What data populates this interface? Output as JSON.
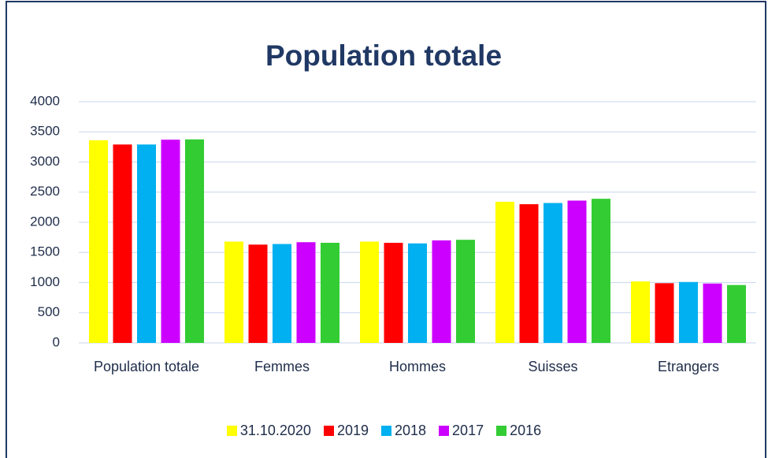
{
  "chart_data": {
    "type": "bar",
    "title": "Population totale",
    "categories": [
      "Population totale",
      "Femmes",
      "Hommes",
      "Suisses",
      "Etrangers"
    ],
    "series": [
      {
        "name": "31.10.2020",
        "color": "#ffff00",
        "values": [
          3360,
          1680,
          1680,
          2340,
          1020
        ]
      },
      {
        "name": "2019",
        "color": "#ff0000",
        "values": [
          3290,
          1630,
          1660,
          2300,
          990
        ]
      },
      {
        "name": "2018",
        "color": "#00b0f0",
        "values": [
          3290,
          1640,
          1650,
          2320,
          1010
        ]
      },
      {
        "name": "2017",
        "color": "#cc00ff",
        "values": [
          3370,
          1670,
          1700,
          2360,
          985
        ]
      },
      {
        "name": "2016",
        "color": "#33cc33",
        "values": [
          3375,
          1660,
          1710,
          2390,
          960
        ]
      }
    ],
    "ylim": [
      0,
      4000
    ],
    "yticks": [
      0,
      500,
      1000,
      1500,
      2000,
      2500,
      3000,
      3500,
      4000
    ],
    "grid": true,
    "legend": "bottom"
  }
}
